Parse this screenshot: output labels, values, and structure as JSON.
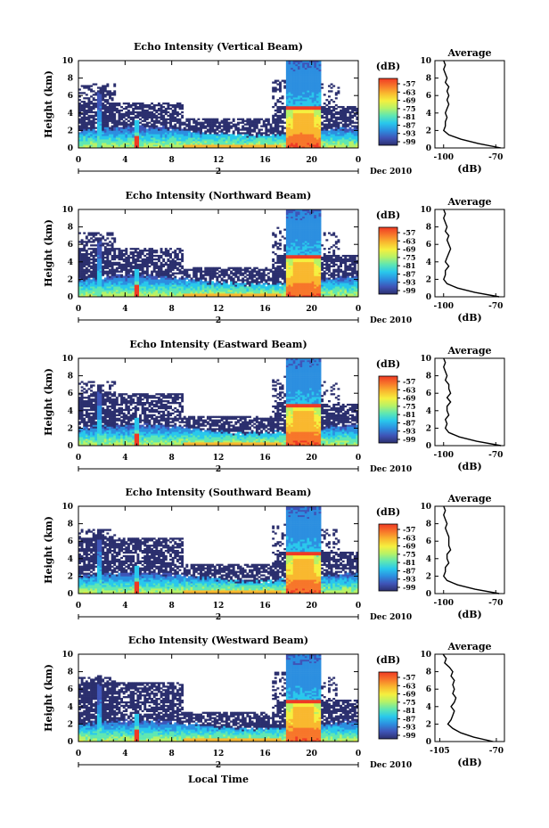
{
  "figure": {
    "xlabel": "Local Time",
    "date_label": "Dec 2010",
    "day_marker": "2",
    "colorbar_unit": "(dB)",
    "profile_title": "Average",
    "profile_xlabel": "(dB)"
  },
  "colormap": [
    "#2b2f6e",
    "#3f55b8",
    "#2c8fe0",
    "#29c8ec",
    "#5fe7b2",
    "#b6f267",
    "#f5ef3f",
    "#f9b82f",
    "#f7762a",
    "#ef3a24"
  ],
  "chart_data": [
    {
      "type": "heatmap",
      "title": "Echo Intensity (Vertical Beam)",
      "ylabel": "Height (km)",
      "xticks": [
        "0",
        "4",
        "8",
        "12",
        "16",
        "20",
        "0"
      ],
      "yticks": [
        "0",
        "2",
        "4",
        "6",
        "8",
        "10"
      ],
      "xlim": [
        0,
        24
      ],
      "ylim": [
        0,
        10
      ],
      "colorbar_ticks": [
        "-57",
        "-63",
        "-69",
        "-75",
        "-81",
        "-87",
        "-93",
        "-99"
      ],
      "profile": {
        "xticks": [
          "-100",
          "-70"
        ],
        "yticks": [
          "0",
          "2",
          "4",
          "6",
          "8",
          "10"
        ],
        "xlim": [
          -105,
          -65
        ],
        "heights": [
          0,
          0.5,
          1,
          1.5,
          2,
          2.5,
          3,
          3.5,
          4,
          4.5,
          5,
          5.5,
          6,
          6.5,
          7,
          7.5,
          8,
          8.5,
          9,
          9.5,
          10
        ],
        "values": [
          -67,
          -80,
          -90,
          -97,
          -100,
          -99,
          -99,
          -98,
          -99,
          -98,
          -97,
          -98,
          -97,
          -98,
          -97,
          -99,
          -98,
          -99,
          -100,
          -99,
          -100
        ]
      }
    },
    {
      "type": "heatmap",
      "title": "Echo Intensity (Northward Beam)",
      "ylabel": "Height (km)",
      "xticks": [
        "0",
        "4",
        "8",
        "12",
        "16",
        "20",
        "0"
      ],
      "yticks": [
        "0",
        "2",
        "4",
        "6",
        "8",
        "10"
      ],
      "xlim": [
        0,
        24
      ],
      "ylim": [
        0,
        10
      ],
      "colorbar_ticks": [
        "-57",
        "-63",
        "-69",
        "-75",
        "-81",
        "-87",
        "-93",
        "-99"
      ],
      "profile": {
        "xticks": [
          "-100",
          "-70"
        ],
        "yticks": [
          "0",
          "2",
          "4",
          "6",
          "8",
          "10"
        ],
        "xlim": [
          -105,
          -65
        ],
        "heights": [
          0,
          0.5,
          1,
          1.5,
          2,
          2.5,
          3,
          3.5,
          4,
          4.5,
          5,
          5.5,
          6,
          6.5,
          7,
          7.5,
          8,
          8.5,
          9,
          9.5,
          10
        ],
        "values": [
          -68,
          -82,
          -92,
          -98,
          -100,
          -99,
          -99,
          -97,
          -99,
          -98,
          -97,
          -96,
          -97,
          -98,
          -97,
          -99,
          -98,
          -99,
          -100,
          -99,
          -100
        ]
      }
    },
    {
      "type": "heatmap",
      "title": "Echo Intensity (Eastward Beam)",
      "ylabel": "Height (km)",
      "xticks": [
        "0",
        "4",
        "8",
        "12",
        "16",
        "20",
        "0"
      ],
      "yticks": [
        "0",
        "2",
        "4",
        "6",
        "8",
        "10"
      ],
      "xlim": [
        0,
        24
      ],
      "ylim": [
        0,
        10
      ],
      "colorbar_ticks": [
        "-57",
        "-63",
        "-69",
        "-75",
        "-81",
        "-87",
        "-93",
        "-99"
      ],
      "profile": {
        "xticks": [
          "-100",
          "-70"
        ],
        "yticks": [
          "0",
          "2",
          "4",
          "6",
          "8",
          "10"
        ],
        "xlim": [
          -105,
          -65
        ],
        "heights": [
          0,
          0.5,
          1,
          1.5,
          2,
          2.5,
          3,
          3.5,
          4,
          4.5,
          5,
          5.5,
          6,
          6.5,
          7,
          7.5,
          8,
          8.5,
          9,
          9.5,
          10
        ],
        "values": [
          -67,
          -81,
          -91,
          -97,
          -99,
          -98,
          -99,
          -97,
          -98,
          -98,
          -96,
          -98,
          -96,
          -97,
          -97,
          -99,
          -98,
          -99,
          -100,
          -99,
          -100
        ]
      }
    },
    {
      "type": "heatmap",
      "title": "Echo Intensity (Southward Beam)",
      "ylabel": "Height (km)",
      "xticks": [
        "0",
        "4",
        "8",
        "12",
        "16",
        "20",
        "0"
      ],
      "yticks": [
        "0",
        "2",
        "4",
        "6",
        "8",
        "10"
      ],
      "xlim": [
        0,
        24
      ],
      "ylim": [
        0,
        10
      ],
      "colorbar_ticks": [
        "-57",
        "-63",
        "-69",
        "-75",
        "-81",
        "-87",
        "-93",
        "-99"
      ],
      "profile": {
        "xticks": [
          "-100",
          "-70"
        ],
        "yticks": [
          "0",
          "2",
          "4",
          "6",
          "8",
          "10"
        ],
        "xlim": [
          -105,
          -65
        ],
        "heights": [
          0,
          0.5,
          1,
          1.5,
          2,
          2.5,
          3,
          3.5,
          4,
          4.5,
          5,
          5.5,
          6,
          6.5,
          7,
          7.5,
          8,
          8.5,
          9,
          9.5,
          10
        ],
        "values": [
          -68,
          -82,
          -92,
          -98,
          -100,
          -99,
          -99,
          -97,
          -98,
          -98,
          -96,
          -97,
          -97,
          -97,
          -98,
          -99,
          -98,
          -99,
          -100,
          -99,
          -100
        ]
      }
    },
    {
      "type": "heatmap",
      "title": "Echo Intensity (Westward Beam)",
      "ylabel": "Height (km)",
      "xticks": [
        "0",
        "4",
        "8",
        "12",
        "16",
        "20",
        "0"
      ],
      "yticks": [
        "0",
        "2",
        "4",
        "6",
        "8",
        "10"
      ],
      "xlim": [
        0,
        24
      ],
      "ylim": [
        0,
        10
      ],
      "colorbar_ticks": [
        "-57",
        "-63",
        "-69",
        "-75",
        "-81",
        "-87",
        "-93",
        "-99"
      ],
      "profile": {
        "xticks": [
          "-105",
          "-70"
        ],
        "yticks": [
          "0",
          "2",
          "4",
          "6",
          "8",
          "10"
        ],
        "xlim": [
          -108,
          -65
        ],
        "heights": [
          0,
          0.5,
          1,
          1.5,
          2,
          2.5,
          3,
          3.5,
          4,
          4.5,
          5,
          5.5,
          6,
          6.5,
          7,
          7.5,
          8,
          8.5,
          9,
          9.5,
          10
        ],
        "values": [
          -72,
          -84,
          -92,
          -97,
          -100,
          -98,
          -97,
          -96,
          -98,
          -96,
          -95,
          -97,
          -96,
          -97,
          -96,
          -98,
          -97,
          -99,
          -102,
          -101,
          -103
        ]
      }
    }
  ]
}
